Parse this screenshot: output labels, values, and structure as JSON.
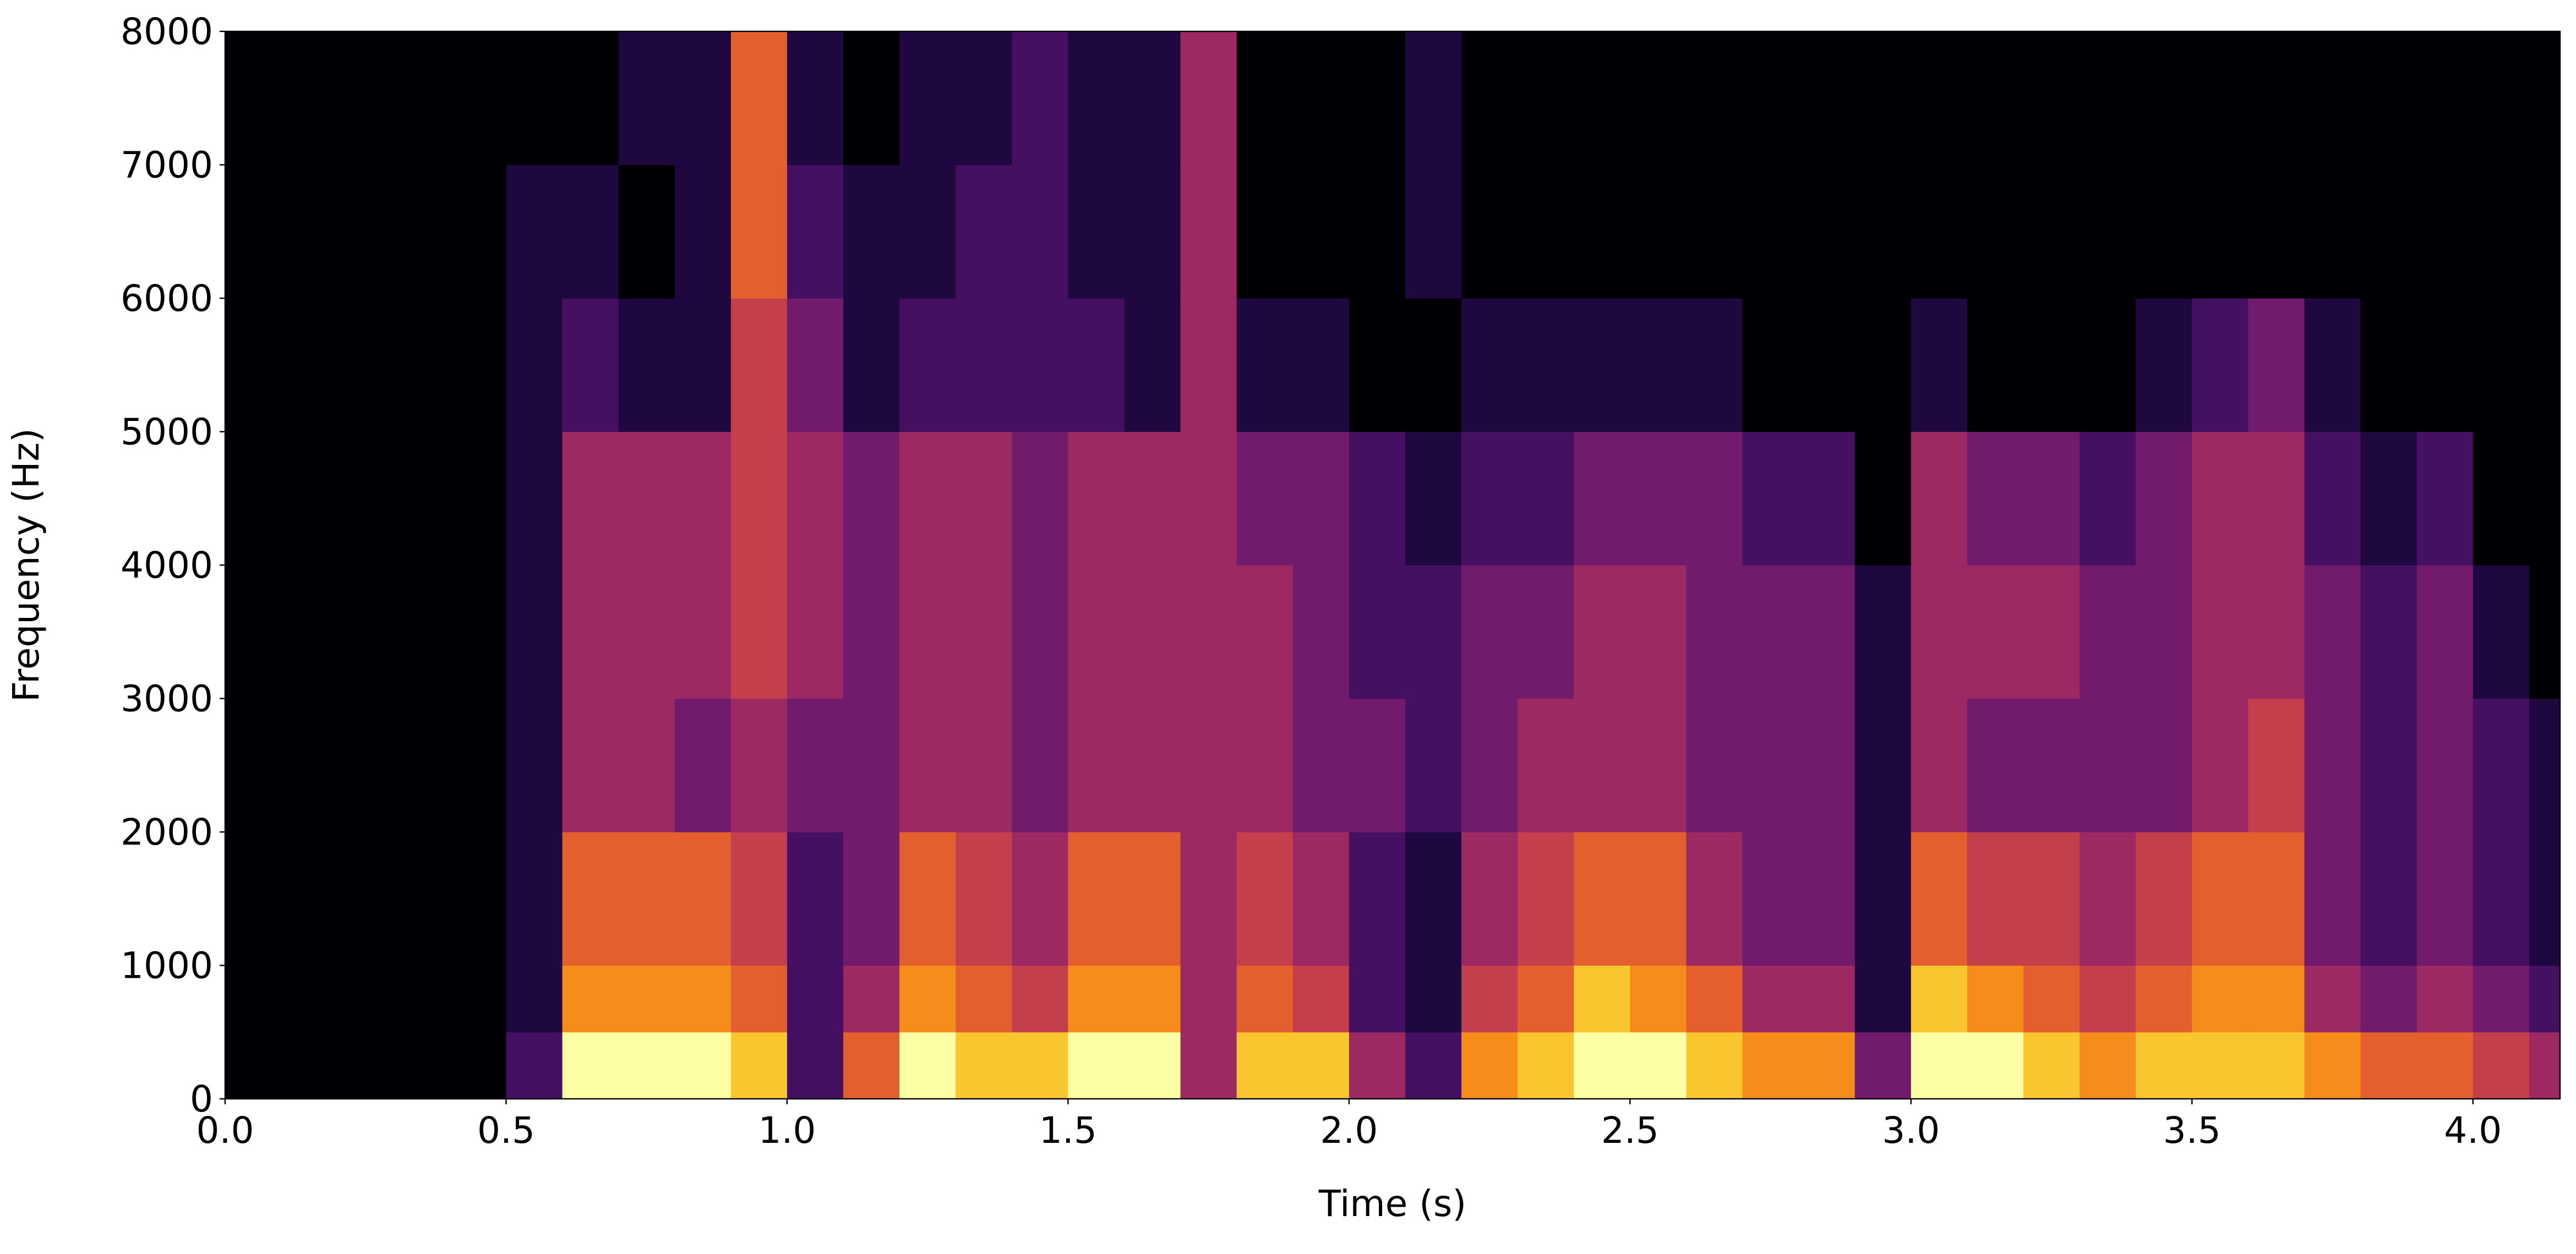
{
  "chart_data": {
    "type": "spectrogram",
    "x_label": "Time (s)",
    "y_label": "Frequency (Hz)",
    "xlim": [
      0,
      4.155
    ],
    "ylim": [
      0,
      8000
    ],
    "xticks": [
      {
        "value": 0,
        "label": "0.0"
      },
      0.5,
      {
        "value": 1,
        "label": "1.0"
      },
      1.5,
      {
        "value": 2,
        "label": "2.0"
      },
      2.5,
      {
        "value": 3,
        "label": "3.0"
      },
      3.5,
      {
        "value": 4,
        "label": "4.0"
      }
    ],
    "yticks": [
      0,
      1000,
      2000,
      3000,
      4000,
      5000,
      6000,
      7000,
      8000
    ],
    "colormap": "inferno",
    "time_bins": [
      0,
      0.1,
      0.2,
      0.3,
      0.4,
      0.5,
      0.6,
      0.7,
      0.8,
      0.9,
      1,
      1.1,
      1.2,
      1.3,
      1.4,
      1.5,
      1.6,
      1.7,
      1.8,
      1.9,
      2,
      2.1,
      2.2,
      2.3,
      2.4,
      2.5,
      2.6,
      2.7,
      2.8,
      2.9,
      3,
      3.1,
      3.2,
      3.3,
      3.4,
      3.5,
      3.6,
      3.7,
      3.8,
      3.9,
      4,
      4.1,
      4.155
    ],
    "frequency_bins": [
      0,
      500,
      1000,
      2000,
      3000,
      4000,
      5000,
      6000,
      7000,
      8000
    ],
    "intensity": [
      [
        0,
        0,
        0,
        0,
        0,
        0,
        0,
        0,
        0
      ],
      [
        0,
        0,
        0,
        0,
        0,
        0,
        0,
        0,
        0
      ],
      [
        0,
        0,
        0,
        0,
        0,
        0,
        0,
        0,
        0
      ],
      [
        0,
        0,
        0,
        0,
        0,
        0,
        0,
        0,
        0
      ],
      [
        0,
        0,
        0,
        0,
        0,
        0,
        0,
        0,
        0
      ],
      [
        2,
        1,
        1,
        1,
        1,
        1,
        1,
        1,
        0
      ],
      [
        9,
        7,
        6,
        4,
        4,
        4,
        2,
        1,
        0
      ],
      [
        9,
        7,
        6,
        4,
        4,
        4,
        1,
        0,
        1
      ],
      [
        9,
        7,
        6,
        3,
        4,
        4,
        1,
        1,
        1
      ],
      [
        8,
        6,
        5,
        4,
        5,
        5,
        5,
        6,
        6
      ],
      [
        2,
        2,
        2,
        3,
        4,
        4,
        3,
        2,
        1
      ],
      [
        6,
        4,
        3,
        3,
        3,
        3,
        1,
        1,
        0
      ],
      [
        9,
        7,
        6,
        4,
        4,
        4,
        2,
        1,
        1
      ],
      [
        8,
        6,
        5,
        4,
        4,
        4,
        2,
        2,
        1
      ],
      [
        8,
        5,
        4,
        3,
        3,
        3,
        2,
        2,
        2
      ],
      [
        9,
        7,
        6,
        4,
        4,
        4,
        2,
        1,
        1
      ],
      [
        9,
        7,
        6,
        4,
        4,
        4,
        1,
        1,
        1
      ],
      [
        4,
        4,
        4,
        4,
        4,
        4,
        4,
        4,
        4
      ],
      [
        8,
        6,
        5,
        4,
        4,
        3,
        1,
        0,
        0
      ],
      [
        8,
        5,
        4,
        3,
        3,
        3,
        1,
        0,
        0
      ],
      [
        4,
        2,
        2,
        3,
        2,
        2,
        0,
        0,
        0
      ],
      [
        2,
        1,
        1,
        2,
        2,
        1,
        0,
        1,
        1
      ],
      [
        7,
        5,
        4,
        3,
        3,
        2,
        1,
        0,
        0
      ],
      [
        8,
        6,
        5,
        4,
        3,
        2,
        1,
        0,
        0
      ],
      [
        9,
        8,
        6,
        4,
        4,
        3,
        1,
        0,
        0
      ],
      [
        9,
        7,
        6,
        4,
        4,
        3,
        1,
        0,
        0
      ],
      [
        8,
        6,
        4,
        3,
        3,
        3,
        1,
        0,
        0
      ],
      [
        7,
        4,
        3,
        3,
        3,
        2,
        0,
        0,
        0
      ],
      [
        7,
        4,
        3,
        3,
        3,
        2,
        0,
        0,
        0
      ],
      [
        3,
        1,
        1,
        1,
        1,
        0,
        0,
        0,
        0
      ],
      [
        9,
        8,
        6,
        4,
        4,
        4,
        1,
        0,
        0
      ],
      [
        9,
        7,
        5,
        3,
        4,
        3,
        0,
        0,
        0
      ],
      [
        8,
        6,
        5,
        3,
        4,
        3,
        0,
        0,
        0
      ],
      [
        7,
        5,
        4,
        3,
        3,
        2,
        0,
        0,
        0
      ],
      [
        8,
        6,
        5,
        3,
        3,
        3,
        1,
        0,
        0
      ],
      [
        8,
        7,
        6,
        4,
        4,
        4,
        2,
        0,
        0
      ],
      [
        8,
        7,
        6,
        5,
        4,
        4,
        3,
        0,
        0
      ],
      [
        7,
        4,
        3,
        3,
        3,
        2,
        1,
        0,
        0
      ],
      [
        6,
        3,
        2,
        2,
        2,
        1,
        0,
        0,
        0
      ],
      [
        6,
        4,
        3,
        3,
        3,
        2,
        0,
        0,
        0
      ],
      [
        5,
        3,
        2,
        2,
        1,
        0,
        0,
        0,
        0
      ],
      [
        4,
        2,
        1,
        1,
        0,
        0,
        0,
        0,
        0
      ]
    ]
  }
}
